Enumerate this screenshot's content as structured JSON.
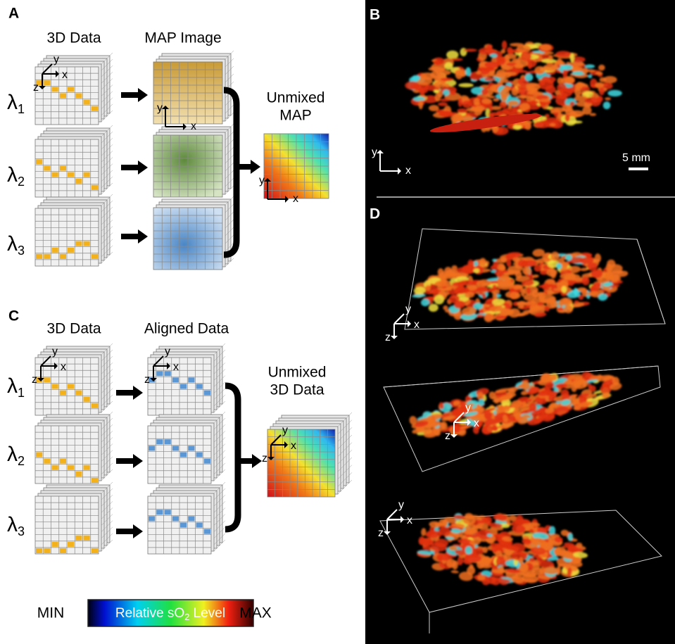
{
  "panels": {
    "a": {
      "label": "A",
      "columns": [
        "3D Data",
        "MAP Image"
      ],
      "result": [
        "Unmixed",
        "MAP"
      ]
    },
    "b": {
      "label": "B",
      "scale_bar": "5 mm"
    },
    "c": {
      "label": "C",
      "columns": [
        "3D Data",
        "Aligned Data"
      ],
      "result": [
        "Unmixed",
        "3D Data"
      ]
    },
    "d": {
      "label": "D"
    }
  },
  "wavelengths": [
    {
      "symbol": "λ",
      "sub": "1"
    },
    {
      "symbol": "λ",
      "sub": "2"
    },
    {
      "symbol": "λ",
      "sub": "3"
    }
  ],
  "axes": {
    "x": "x",
    "y": "y",
    "z": "z"
  },
  "colorbar": {
    "min": "MIN",
    "max": "MAX",
    "title": "Relative sO",
    "title_sub": "2",
    "title_end": " Level"
  }
}
